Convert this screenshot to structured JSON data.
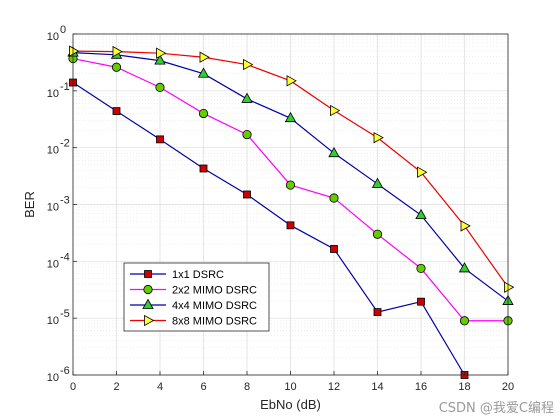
{
  "chart_data": {
    "type": "line",
    "xlabel": "EbNo (dB)",
    "ylabel": "BER",
    "xlim": [
      0,
      20
    ],
    "ylim": [
      1e-06,
      1
    ],
    "yscale": "log",
    "grid": true,
    "minor_grid": true,
    "legend_position": "bottom-left",
    "x_ticks": [
      "0",
      "2",
      "4",
      "6",
      "8",
      "10",
      "12",
      "14",
      "16",
      "18",
      "20"
    ],
    "y_tick_bases": [
      "10",
      "10",
      "10",
      "10",
      "10",
      "10",
      "10"
    ],
    "y_tick_exponents": [
      "-6",
      "-5",
      "-4",
      "-3",
      "-2",
      "-1",
      "0"
    ],
    "series": [
      {
        "name": "1x1 DSRC",
        "color": "#0000aa",
        "marker": "square",
        "marker_color": "#cc0000",
        "x": [
          0,
          2,
          4,
          6,
          8,
          10,
          12,
          14,
          16,
          18
        ],
        "y": [
          0.14,
          0.044,
          0.014,
          0.0043,
          0.0015,
          0.00043,
          0.000165,
          1.28e-05,
          1.95e-05,
          1e-06
        ]
      },
      {
        "name": "2x2 MIMO DSRC",
        "color": "#ff00ff",
        "marker": "circle",
        "marker_color": "#66cc00",
        "x": [
          0,
          2,
          4,
          6,
          8,
          10,
          12,
          14,
          16,
          18,
          20
        ],
        "y": [
          0.37,
          0.26,
          0.115,
          0.04,
          0.017,
          0.0022,
          0.0013,
          0.0003,
          7.5e-05,
          9e-06,
          9e-06
        ]
      },
      {
        "name": "4x4 MIMO DSRC",
        "color": "#0000aa",
        "marker": "triangle",
        "marker_color": "#33cc33",
        "x": [
          0,
          2,
          4,
          6,
          8,
          10,
          12,
          14,
          16,
          18,
          20
        ],
        "y": [
          0.47,
          0.43,
          0.34,
          0.2,
          0.072,
          0.033,
          0.008,
          0.0023,
          0.00065,
          7.5e-05,
          2e-05
        ]
      },
      {
        "name": "8x8 MIMO DSRC",
        "color": "#ee0000",
        "marker": "triangle-right",
        "marker_color": "#ffff33",
        "x": [
          0,
          2,
          4,
          6,
          8,
          10,
          12,
          14,
          16,
          18,
          20
        ],
        "y": [
          0.5,
          0.49,
          0.46,
          0.39,
          0.29,
          0.15,
          0.045,
          0.015,
          0.0037,
          0.00042,
          3.5e-05
        ]
      }
    ]
  },
  "watermark": "CSDN @我爱C编程"
}
